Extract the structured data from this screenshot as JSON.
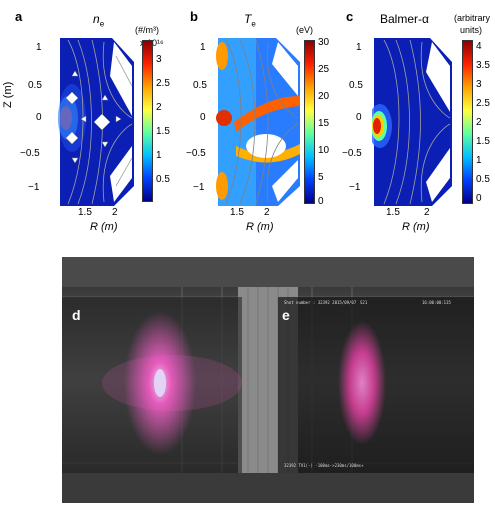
{
  "panels": {
    "a": {
      "letter": "a",
      "title": "n",
      "title_sub": "e",
      "unit": "(#/m³)",
      "multiplier": "x 10¹⁶",
      "cb_ticks": [
        "3",
        "2.5",
        "2",
        "1.5",
        "1",
        "0.5"
      ]
    },
    "b": {
      "letter": "b",
      "title": "T",
      "title_sub": "e",
      "unit": "(eV)",
      "cb_ticks": [
        "30",
        "25",
        "20",
        "15",
        "10",
        "5",
        "0"
      ]
    },
    "c": {
      "letter": "c",
      "title": "Balmer-α",
      "unit_line1": "(arbitrary",
      "unit_line2": "units)",
      "cb_ticks": [
        "4",
        "3.5",
        "3",
        "2.5",
        "2",
        "1.5",
        "1",
        "0.5",
        "0"
      ]
    }
  },
  "axes": {
    "z_label": "Z (m)",
    "z_ticks": [
      "1",
      "0.5",
      "0",
      "−0.5",
      "−1"
    ],
    "r_label": "R (m)",
    "r_ticks": [
      "1.5",
      "2"
    ]
  },
  "photo": {
    "label_d": "d",
    "label_e": "e",
    "header_left": "Shot number : 32392  2015/09/07",
    "header_mid": "S21",
    "header_right": "16:00:00:135",
    "footer": "32392 TV1(-) -100ms->230ms/100ms+"
  },
  "colors": {
    "plasma": "#e040a0",
    "colorbar_top": "#c00000",
    "colorbar_bottom": "#00007f"
  }
}
